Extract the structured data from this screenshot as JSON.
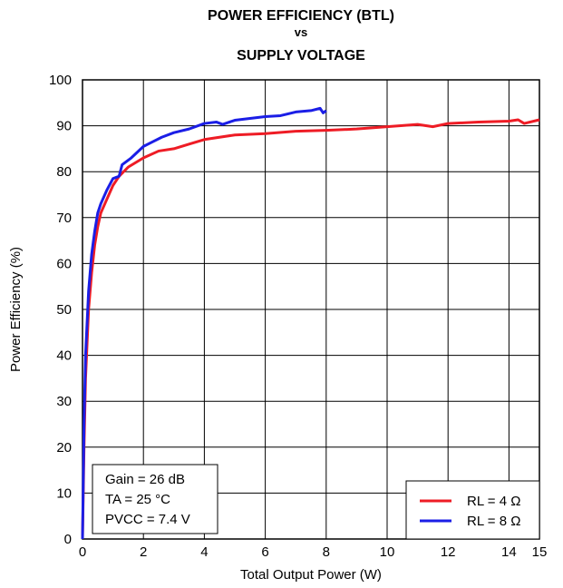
{
  "chart_data": {
    "type": "line",
    "title": [
      "POWER EFFICIENCY (BTL)",
      "vs",
      "SUPPLY VOLTAGE"
    ],
    "x_label": "Total Output Power (W)",
    "y_label": "Power Efficiency (%)",
    "xlim": [
      0,
      15
    ],
    "xticks": [
      0,
      2,
      4,
      6,
      8,
      10,
      12,
      14,
      15
    ],
    "ylim": [
      0,
      100
    ],
    "yticks": [
      0,
      10,
      20,
      30,
      40,
      50,
      60,
      70,
      80,
      90,
      100
    ],
    "grid": true,
    "legend": "lower right",
    "annotations": [
      "Gain = 26 dB",
      "TA = 25 °C",
      "PVCC = 7.4 V"
    ],
    "series": [
      {
        "name": "RL = 4 Ω",
        "color": "#ee1c25",
        "x": [
          0,
          0.05,
          0.1,
          0.2,
          0.3,
          0.4,
          0.5,
          0.6,
          0.8,
          1.0,
          1.2,
          1.5,
          2,
          2.5,
          3,
          3.5,
          4,
          5,
          6,
          7,
          8,
          9,
          10,
          11,
          11.5,
          12,
          13,
          14,
          14.3,
          14.5,
          15
        ],
        "values": [
          0,
          20,
          35,
          50,
          58,
          64,
          68,
          71,
          74,
          77,
          79,
          81,
          83,
          84.5,
          85,
          86,
          87,
          88,
          88.3,
          88.8,
          89,
          89.3,
          89.8,
          90.3,
          89.8,
          90.5,
          90.8,
          91,
          91.3,
          90.5,
          91.3
        ]
      },
      {
        "name": "RL = 8 Ω",
        "color": "#1b1ee6",
        "x": [
          0,
          0.05,
          0.1,
          0.2,
          0.3,
          0.4,
          0.5,
          0.6,
          0.8,
          1.0,
          1.2,
          1.3,
          1.6,
          2,
          2.3,
          2.6,
          3,
          3.5,
          4,
          4.4,
          4.6,
          5,
          6,
          6.5,
          7,
          7.5,
          7.8,
          7.9,
          8
        ],
        "values": [
          0,
          25,
          40,
          54,
          62,
          67,
          71,
          73,
          76,
          78.5,
          79,
          81.5,
          83,
          85.5,
          86.5,
          87.5,
          88.5,
          89.3,
          90.5,
          90.8,
          90.3,
          91.2,
          92,
          92.2,
          93,
          93.3,
          93.8,
          92.8,
          93.3
        ]
      }
    ]
  }
}
